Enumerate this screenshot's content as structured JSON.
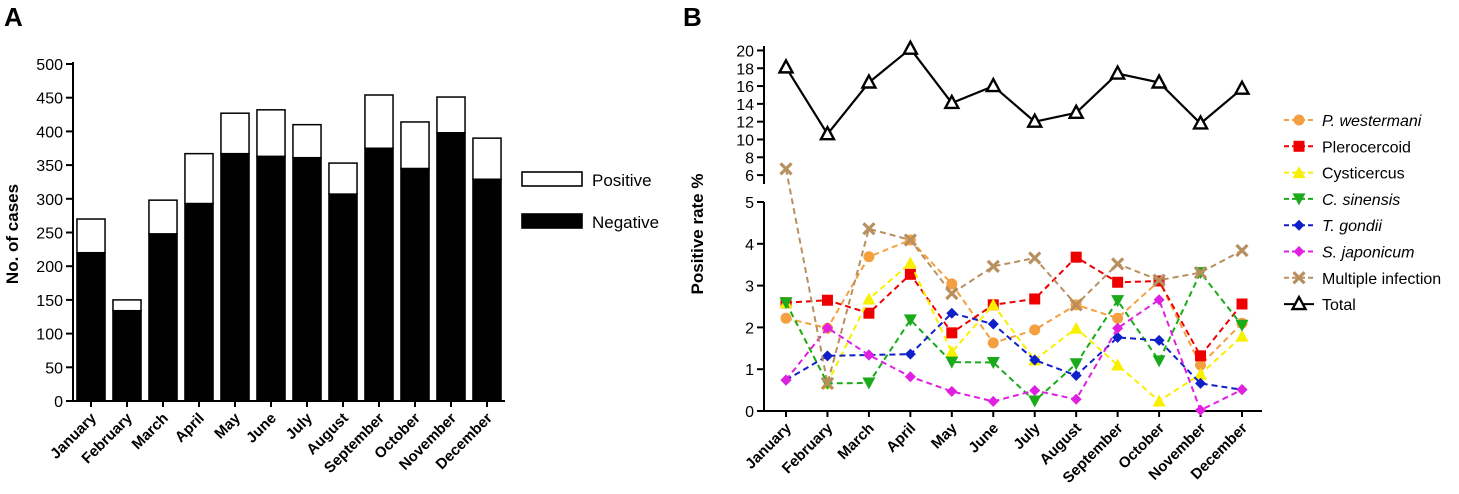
{
  "chart_data": [
    {
      "panel_label": "A",
      "type": "bar",
      "stacked": true,
      "categories": [
        "January",
        "February",
        "March",
        "April",
        "May",
        "June",
        "July",
        "August",
        "September",
        "October",
        "November",
        "December"
      ],
      "series": [
        {
          "name": "Negative",
          "color": "#000000",
          "values": [
            220,
            134,
            248,
            293,
            367,
            363,
            361,
            307,
            375,
            345,
            398,
            329
          ]
        },
        {
          "name": "Positive",
          "color": "#ffffff",
          "values": [
            50,
            16,
            50,
            74,
            60,
            69,
            49,
            46,
            79,
            69,
            53,
            61
          ]
        }
      ],
      "ylabel": "No. of cases",
      "ylim": [
        0,
        500
      ],
      "yticks": [
        "0",
        "50",
        "100",
        "150",
        "200",
        "250",
        "300",
        "350",
        "400",
        "450",
        "500"
      ],
      "legend": [
        "Positive",
        "Negative"
      ]
    },
    {
      "panel_label": "B",
      "type": "line",
      "categories": [
        "January",
        "February",
        "March",
        "April",
        "May",
        "June",
        "July",
        "August",
        "September",
        "October",
        "November",
        "December"
      ],
      "ylabel": "Positive rate %",
      "y_axis_break": true,
      "lower_ylim": [
        0,
        5
      ],
      "lower_yticks": [
        "0",
        "1",
        "2",
        "3",
        "4",
        "5"
      ],
      "upper_ylim": [
        5,
        20.5
      ],
      "upper_yticks": [
        "6",
        "8",
        "10",
        "12",
        "14",
        "16",
        "18",
        "20"
      ],
      "series": [
        {
          "name": "P. westermani",
          "italic": true,
          "color": "#f4a040",
          "marker": "circle",
          "dashed": true,
          "values": [
            2.22,
            1.98,
            3.69,
            4.09,
            3.04,
            1.63,
            1.94,
            2.54,
            2.22,
            3.11,
            1.1,
            2.1
          ]
        },
        {
          "name": "Plerocercoid",
          "italic": false,
          "color": "#ee0000",
          "marker": "square",
          "dashed": true,
          "values": [
            2.59,
            2.65,
            2.34,
            3.27,
            1.87,
            2.54,
            2.68,
            3.68,
            3.08,
            3.11,
            1.32,
            2.56
          ]
        },
        {
          "name": "Cysticercus",
          "italic": false,
          "color": "#f8f000",
          "marker": "triangle-up",
          "dashed": true,
          "values": [
            2.59,
            0.66,
            2.68,
            3.54,
            1.41,
            2.54,
            1.22,
            1.98,
            1.1,
            0.24,
            0.88,
            1.79
          ]
        },
        {
          "name": "C. sinensis",
          "italic": true,
          "color": "#1aaa1a",
          "marker": "triangle-down",
          "dashed": true,
          "values": [
            2.59,
            0.66,
            0.67,
            2.18,
            1.17,
            1.16,
            0.24,
            1.13,
            2.64,
            1.2,
            3.31,
            2.05
          ]
        },
        {
          "name": "T. gondii",
          "italic": true,
          "color": "#1020c8",
          "marker": "diamond",
          "dashed": true,
          "values": [
            0.74,
            1.32,
            1.34,
            1.36,
            2.34,
            2.08,
            1.22,
            0.85,
            1.76,
            1.69,
            0.66,
            0.51
          ]
        },
        {
          "name": "S. japonicum",
          "italic": true,
          "color": "#e020e0",
          "marker": "diamond",
          "dashed": true,
          "values": [
            0.74,
            1.99,
            1.34,
            0.82,
            0.47,
            0.23,
            0.49,
            0.28,
            1.98,
            2.66,
            0.02,
            0.51
          ]
        },
        {
          "name": "Multiple infection",
          "italic": false,
          "color": "#b89060",
          "marker": "x",
          "dashed": true,
          "values": [
            6.7,
            0.66,
            4.36,
            4.09,
            2.81,
            3.46,
            3.66,
            2.54,
            3.52,
            3.13,
            3.31,
            3.84
          ]
        },
        {
          "name": "Total",
          "italic": false,
          "color": "#000000",
          "marker": "open-triangle",
          "dashed": false,
          "values": [
            18.1,
            10.6,
            16.4,
            20.2,
            14.1,
            16.0,
            12.0,
            13.0,
            17.4,
            16.4,
            11.8,
            15.7
          ]
        }
      ]
    }
  ]
}
